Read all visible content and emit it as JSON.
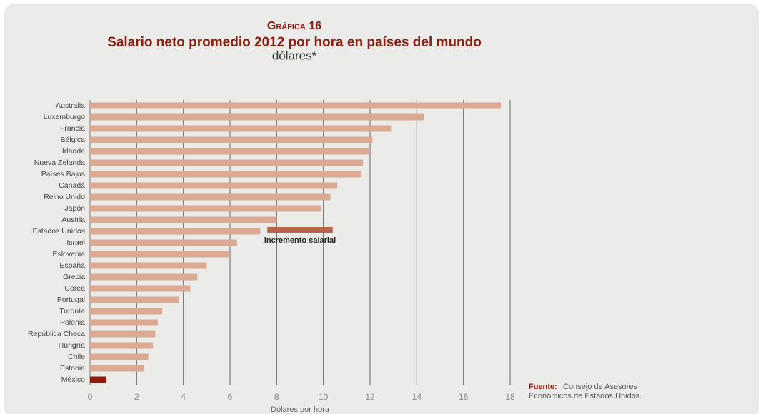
{
  "chart_data": {
    "type": "barh",
    "kicker": "Gráfica 16",
    "title": "Salario neto promedio 2012 por hora en países del mundo",
    "subtitle": "dólares*",
    "x_label": "Dólares por hora",
    "categories": [
      "Australia",
      "Luxemburgo",
      "Francia",
      "Bélgica",
      "Irlanda",
      "Nueva Zelanda",
      "Países Bajos",
      "Canadá",
      "Reino Unido",
      "Japón",
      "Austria",
      "Estados Unidos",
      "Israel",
      "Eslovenia",
      "España",
      "Grecia",
      "Corea",
      "Portugal",
      "Turquía",
      "Polonia",
      "República Checa",
      "Hungría",
      "Chile",
      "Estonia",
      "México"
    ],
    "values": [
      17.6,
      14.3,
      12.9,
      12.1,
      12.0,
      11.7,
      11.6,
      10.6,
      10.3,
      9.9,
      8.0,
      7.3,
      6.3,
      6.0,
      5.0,
      4.6,
      4.3,
      3.8,
      3.1,
      2.9,
      2.8,
      2.7,
      2.5,
      2.3,
      0.7
    ],
    "color": "#dcaa94",
    "highlight": {
      "category": "México",
      "color": "#8e1c0c"
    },
    "annotation": {
      "text": "incremento salarial",
      "category": "Estados Unidos",
      "x_start": 7.6,
      "x_end": 10.4,
      "color": "#b8654a"
    },
    "xlim": [
      0,
      18
    ],
    "xticks": [
      0,
      2,
      4,
      6,
      8,
      10,
      12,
      14,
      16,
      18
    ],
    "grid": true,
    "source": {
      "label": "Fuente:",
      "lines": [
        "Consejo de Asesores",
        "Económicos de Estados Unidos."
      ]
    }
  }
}
